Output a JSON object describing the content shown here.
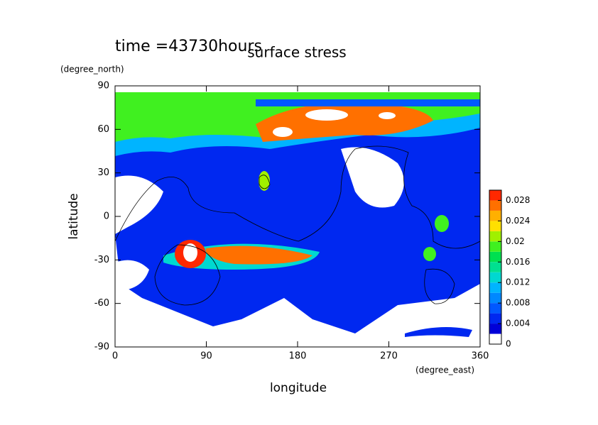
{
  "chart_data": {
    "type": "contour",
    "title": "surface stress",
    "subtitle": "time =43730hours",
    "x_label": "longitude",
    "x_unit": "(degree_east)",
    "y_label": "latitude",
    "y_unit": "(degree_north)",
    "xlim": [
      0,
      360
    ],
    "xticks": [
      0,
      90,
      180,
      270,
      360
    ],
    "ylim": [
      -90,
      90
    ],
    "yticks": [
      -90,
      -60,
      -30,
      0,
      30,
      60,
      90
    ],
    "colorbar_lim": [
      0,
      0.03
    ],
    "colorbar_ticks": [
      0,
      0.004,
      0.008,
      0.012,
      0.016,
      0.02,
      0.024,
      0.028
    ],
    "colors": [
      "#ffffff",
      "#0000d8",
      "#0028f0",
      "#0058ff",
      "#0088ff",
      "#00b4ff",
      "#00d8d0",
      "#00e090",
      "#00e050",
      "#40f020",
      "#a0f000",
      "#ffe000",
      "#ffb000",
      "#ff7000",
      "#ff2800"
    ]
  }
}
